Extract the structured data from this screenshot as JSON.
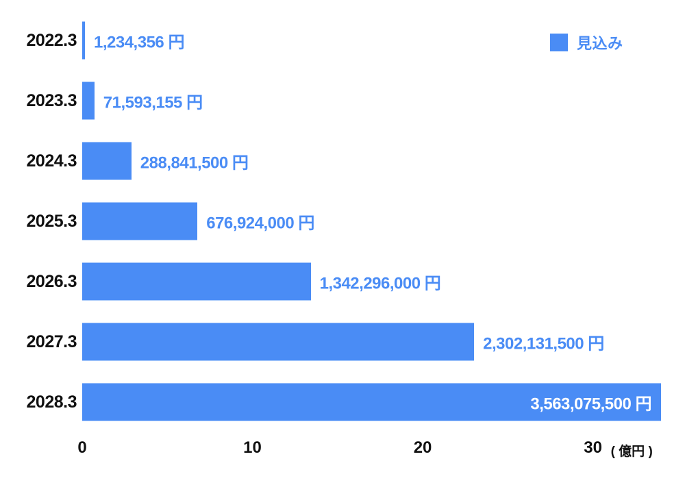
{
  "chart_data": {
    "type": "bar",
    "orientation": "horizontal",
    "title": "",
    "categories": [
      "2022.3",
      "2023.3",
      "2024.3",
      "2025.3",
      "2026.3",
      "2027.3",
      "2028.3"
    ],
    "series": [
      {
        "name": "見込み",
        "values_yen": [
          1234356,
          71593155,
          288841500,
          676924000,
          1342296000,
          2302131500,
          3563075500
        ],
        "value_labels": [
          "1,234,356 円",
          "71,593,155 円",
          "288,841,500 円",
          "676,924,000 円",
          "1,342,296,000 円",
          "2,302,131,500 円",
          "3,563,075,500 円"
        ]
      }
    ],
    "legend": {
      "label": "見込み",
      "position": "top-right"
    },
    "x_axis": {
      "ticks": [
        0,
        10,
        20,
        30
      ],
      "unit_label": "( 億円 )",
      "range": [
        0,
        34
      ],
      "yen_per_axis_unit": 100000000
    },
    "grid": false,
    "colors": {
      "bar": "#4a8cf5",
      "value_text": "#4a8cf5",
      "value_text_inside": "#ffffff",
      "category_text": "#111111",
      "tick_text": "#111111"
    }
  }
}
